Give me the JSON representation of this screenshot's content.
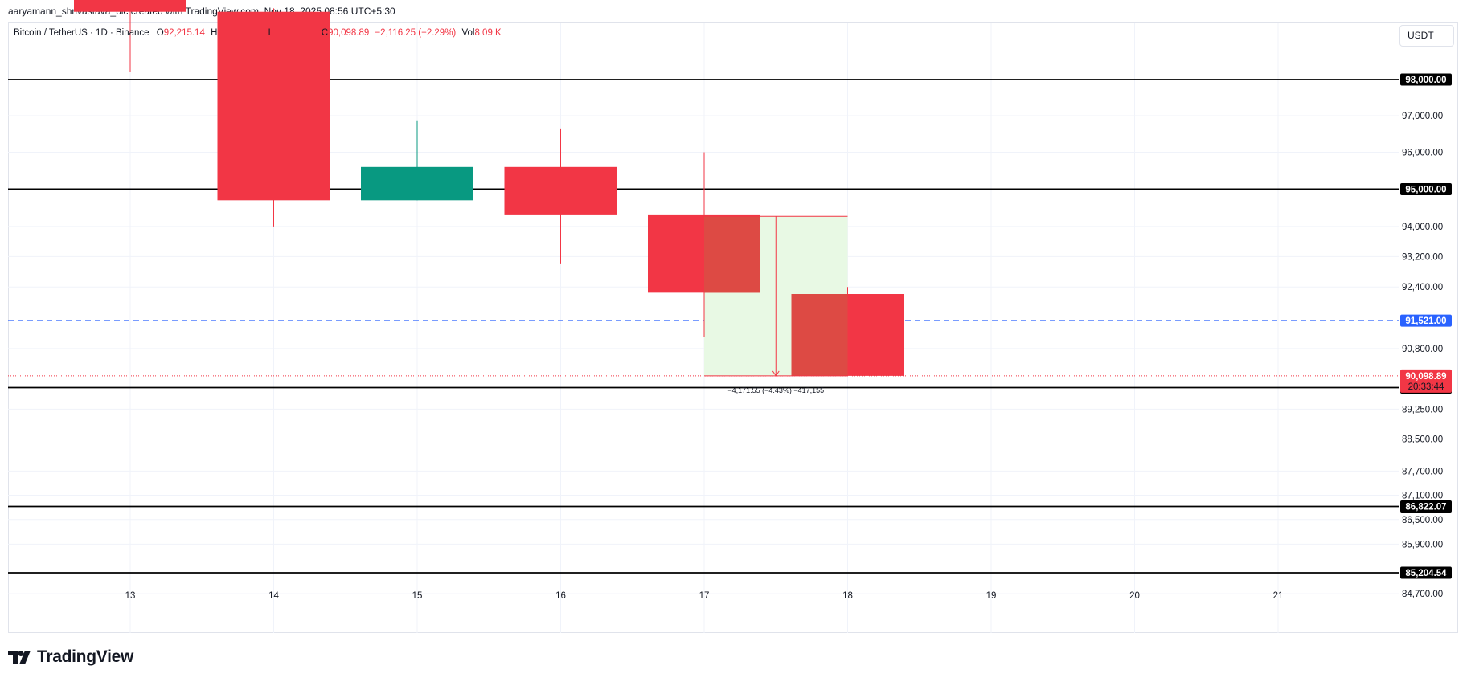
{
  "header": {
    "credit": "aaryamann_shrivastava_bic created with TradingView.com, Nov 18, 2025 08:56 UTC+5:30"
  },
  "legend": {
    "symbol": "Bitcoin / TetherUS · 1D · Binance",
    "o_label": "O",
    "o_value": "92,215.14",
    "h_label": "H",
    "l_label": "L",
    "c_label": "C",
    "c_value": "90,098.89",
    "change": "−2,116.25 (−2.29%)",
    "vol_label": "Vol",
    "vol_value": "8.09 K"
  },
  "currency_button": "USDT",
  "footer": {
    "brand": "TradingView",
    "logo_icon": "tradingview-logo-icon"
  },
  "colors": {
    "up": "#089981",
    "down": "#f23645",
    "down_overlap": "#dd4a44",
    "measure_fill": "#e8f9e4",
    "dashed_line": "#2962ff",
    "horizontal_line": "#000000",
    "last_price_tag": "#f23645",
    "dashed_tag": "#2962ff"
  },
  "chart_data": {
    "type": "candlestick",
    "x_axis_labels": [
      "13",
      "14",
      "15",
      "16",
      "17",
      "18",
      "19",
      "20",
      "21"
    ],
    "y_axis": {
      "scale": "log",
      "labels": [
        "97,000.00",
        "96,000.00",
        "94,000.00",
        "93,200.00",
        "92,400.00",
        "90,800.00",
        "89,250.00",
        "88,500.00",
        "87,700.00",
        "87,100.00",
        "86,500.00",
        "85,900.00",
        "84,700.00"
      ]
    },
    "candles": [
      {
        "day": "13",
        "open": 101500,
        "high": 104000,
        "low": 98200,
        "close": 99900
      },
      {
        "day": "14",
        "open": 99900,
        "high": 100000,
        "low": 94000,
        "close": 94700
      },
      {
        "day": "15",
        "open": 94700,
        "high": 96850,
        "low": 94700,
        "close": 95600
      },
      {
        "day": "16",
        "open": 95600,
        "high": 96650,
        "low": 93000,
        "close": 94300
      },
      {
        "day": "17",
        "open": 94300,
        "high": 96000,
        "low": 91100,
        "close": 92250
      },
      {
        "day": "18",
        "open": 92215.14,
        "high": 92400,
        "low": 90098.89,
        "close": 90098.89
      }
    ],
    "horizontal_lines": [
      {
        "price": 98000,
        "label": "98,000.00"
      },
      {
        "price": 95000,
        "label": "95,000.00"
      },
      {
        "price": 89800,
        "label": "89,800.00"
      },
      {
        "price": 86822.07,
        "label": "86,822.07"
      },
      {
        "price": 85204.54,
        "label": "85,204.54"
      }
    ],
    "dashed_line": {
      "price": 91521,
      "label": "91,521.00"
    },
    "last_price": {
      "price": 90098.89,
      "label": "90,098.89",
      "countdown": "20:33:44"
    },
    "measure": {
      "from_price": 94270.44,
      "to_price": 90098.89,
      "from_day": "17",
      "to_day": "18",
      "label": "−4,171.55 (−4.43%) −417,155"
    }
  }
}
